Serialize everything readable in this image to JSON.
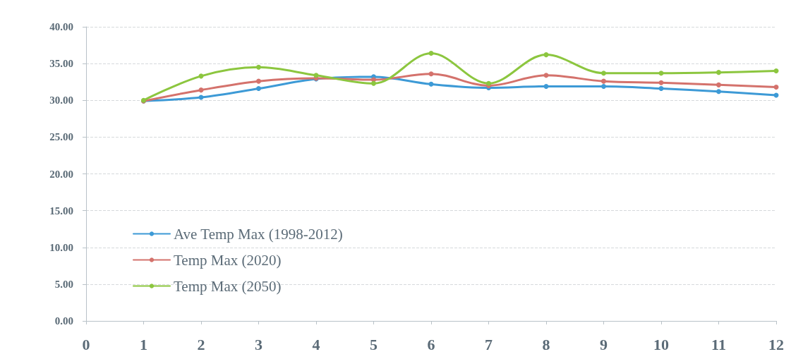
{
  "chart_data": {
    "type": "line",
    "x": [
      1,
      2,
      3,
      4,
      5,
      6,
      7,
      8,
      9,
      10,
      11,
      12
    ],
    "xlim": [
      0,
      12
    ],
    "xticks": [
      0,
      1,
      2,
      3,
      4,
      5,
      6,
      7,
      8,
      9,
      10,
      11,
      12
    ],
    "ylim": [
      0,
      40
    ],
    "yticks": [
      {
        "value": 0,
        "label": "0.00"
      },
      {
        "value": 5,
        "label": "5.00"
      },
      {
        "value": 10,
        "label": "10.00"
      },
      {
        "value": 15,
        "label": "15.00"
      },
      {
        "value": 20,
        "label": "20.00"
      },
      {
        "value": 25,
        "label": "25.00"
      },
      {
        "value": 30,
        "label": "30.00"
      },
      {
        "value": 35,
        "label": "35.00"
      },
      {
        "value": 40,
        "label": "40.00"
      }
    ],
    "grid": "y",
    "legend": "bottom left",
    "marker": "circle",
    "line_style": "solid",
    "series": [
      {
        "name": "Ave Temp Max (1998-2012)",
        "color": "#3d9ad6",
        "values": [
          29.9,
          30.4,
          31.6,
          32.9,
          33.2,
          32.2,
          31.7,
          31.9,
          31.9,
          31.6,
          31.2,
          30.7
        ]
      },
      {
        "name": "Temp Max (2020)",
        "color": "#d4726c",
        "values": [
          29.9,
          31.4,
          32.6,
          33.0,
          32.8,
          33.6,
          32.0,
          33.4,
          32.6,
          32.4,
          32.1,
          31.8
        ]
      },
      {
        "name": "Temp Max (2050)",
        "color": "#8cc63f",
        "values": [
          30.0,
          33.3,
          34.5,
          33.4,
          32.3,
          36.4,
          32.3,
          36.2,
          33.7,
          33.7,
          33.8,
          34.0
        ]
      }
    ]
  }
}
